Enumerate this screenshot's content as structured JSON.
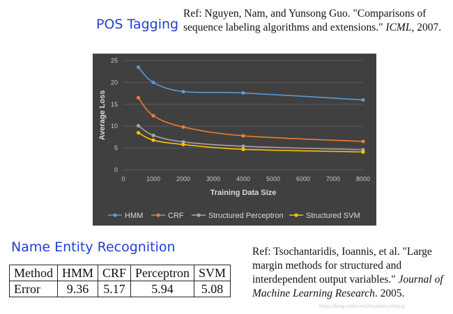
{
  "pos_section": {
    "title": "POS Tagging",
    "ref": {
      "authors": "Ref: Nguyen, Nam, and Yunsong Guo.",
      "title_text": "\"Comparisons of sequence labeling algorithms and extensions.\"",
      "venue": "ICML",
      "year": ", 2007."
    }
  },
  "ner_section": {
    "title": "Name Entity Recognition",
    "ref": {
      "authors": "Ref: Tsochantaridis, Ioannis, et al.",
      "title_text": "\"Large margin methods for structured and interdependent output variables.\"",
      "venue": "Journal of Machine Learning Research",
      "year": ". 2005."
    },
    "table": {
      "header": [
        "Method",
        "HMM",
        "CRF",
        "Perceptron",
        "SVM"
      ],
      "row": [
        "Error",
        "9.36",
        "5.17",
        "5.94",
        "5.08"
      ]
    }
  },
  "chart_data": {
    "type": "line",
    "title": "",
    "xlabel": "Training Data Size",
    "ylabel": "Average Loss",
    "xlim": [
      0,
      8000
    ],
    "ylim": [
      0,
      25
    ],
    "x_ticks": [
      0,
      1000,
      2000,
      3000,
      4000,
      5000,
      6000,
      7000,
      8000
    ],
    "y_ticks": [
      0,
      5,
      10,
      15,
      20,
      25
    ],
    "grid": true,
    "legend_position": "bottom",
    "x": [
      500,
      1000,
      2000,
      4000,
      8000
    ],
    "series": [
      {
        "name": "HMM",
        "color": "#5b9bd5",
        "values": [
          23.5,
          20.0,
          17.9,
          17.6,
          16.0
        ]
      },
      {
        "name": "CRF",
        "color": "#ed7d31",
        "values": [
          16.5,
          12.4,
          9.8,
          7.8,
          6.5
        ]
      },
      {
        "name": "Structured Perceptron",
        "color": "#a5a5a5",
        "values": [
          10.1,
          7.9,
          6.4,
          5.4,
          4.6
        ]
      },
      {
        "name": "Structured SVM",
        "color": "#ffc000",
        "values": [
          8.5,
          6.8,
          5.8,
          4.7,
          4.1
        ]
      }
    ]
  },
  "watermark": "http://blog.csdn.net/muulanceliang"
}
